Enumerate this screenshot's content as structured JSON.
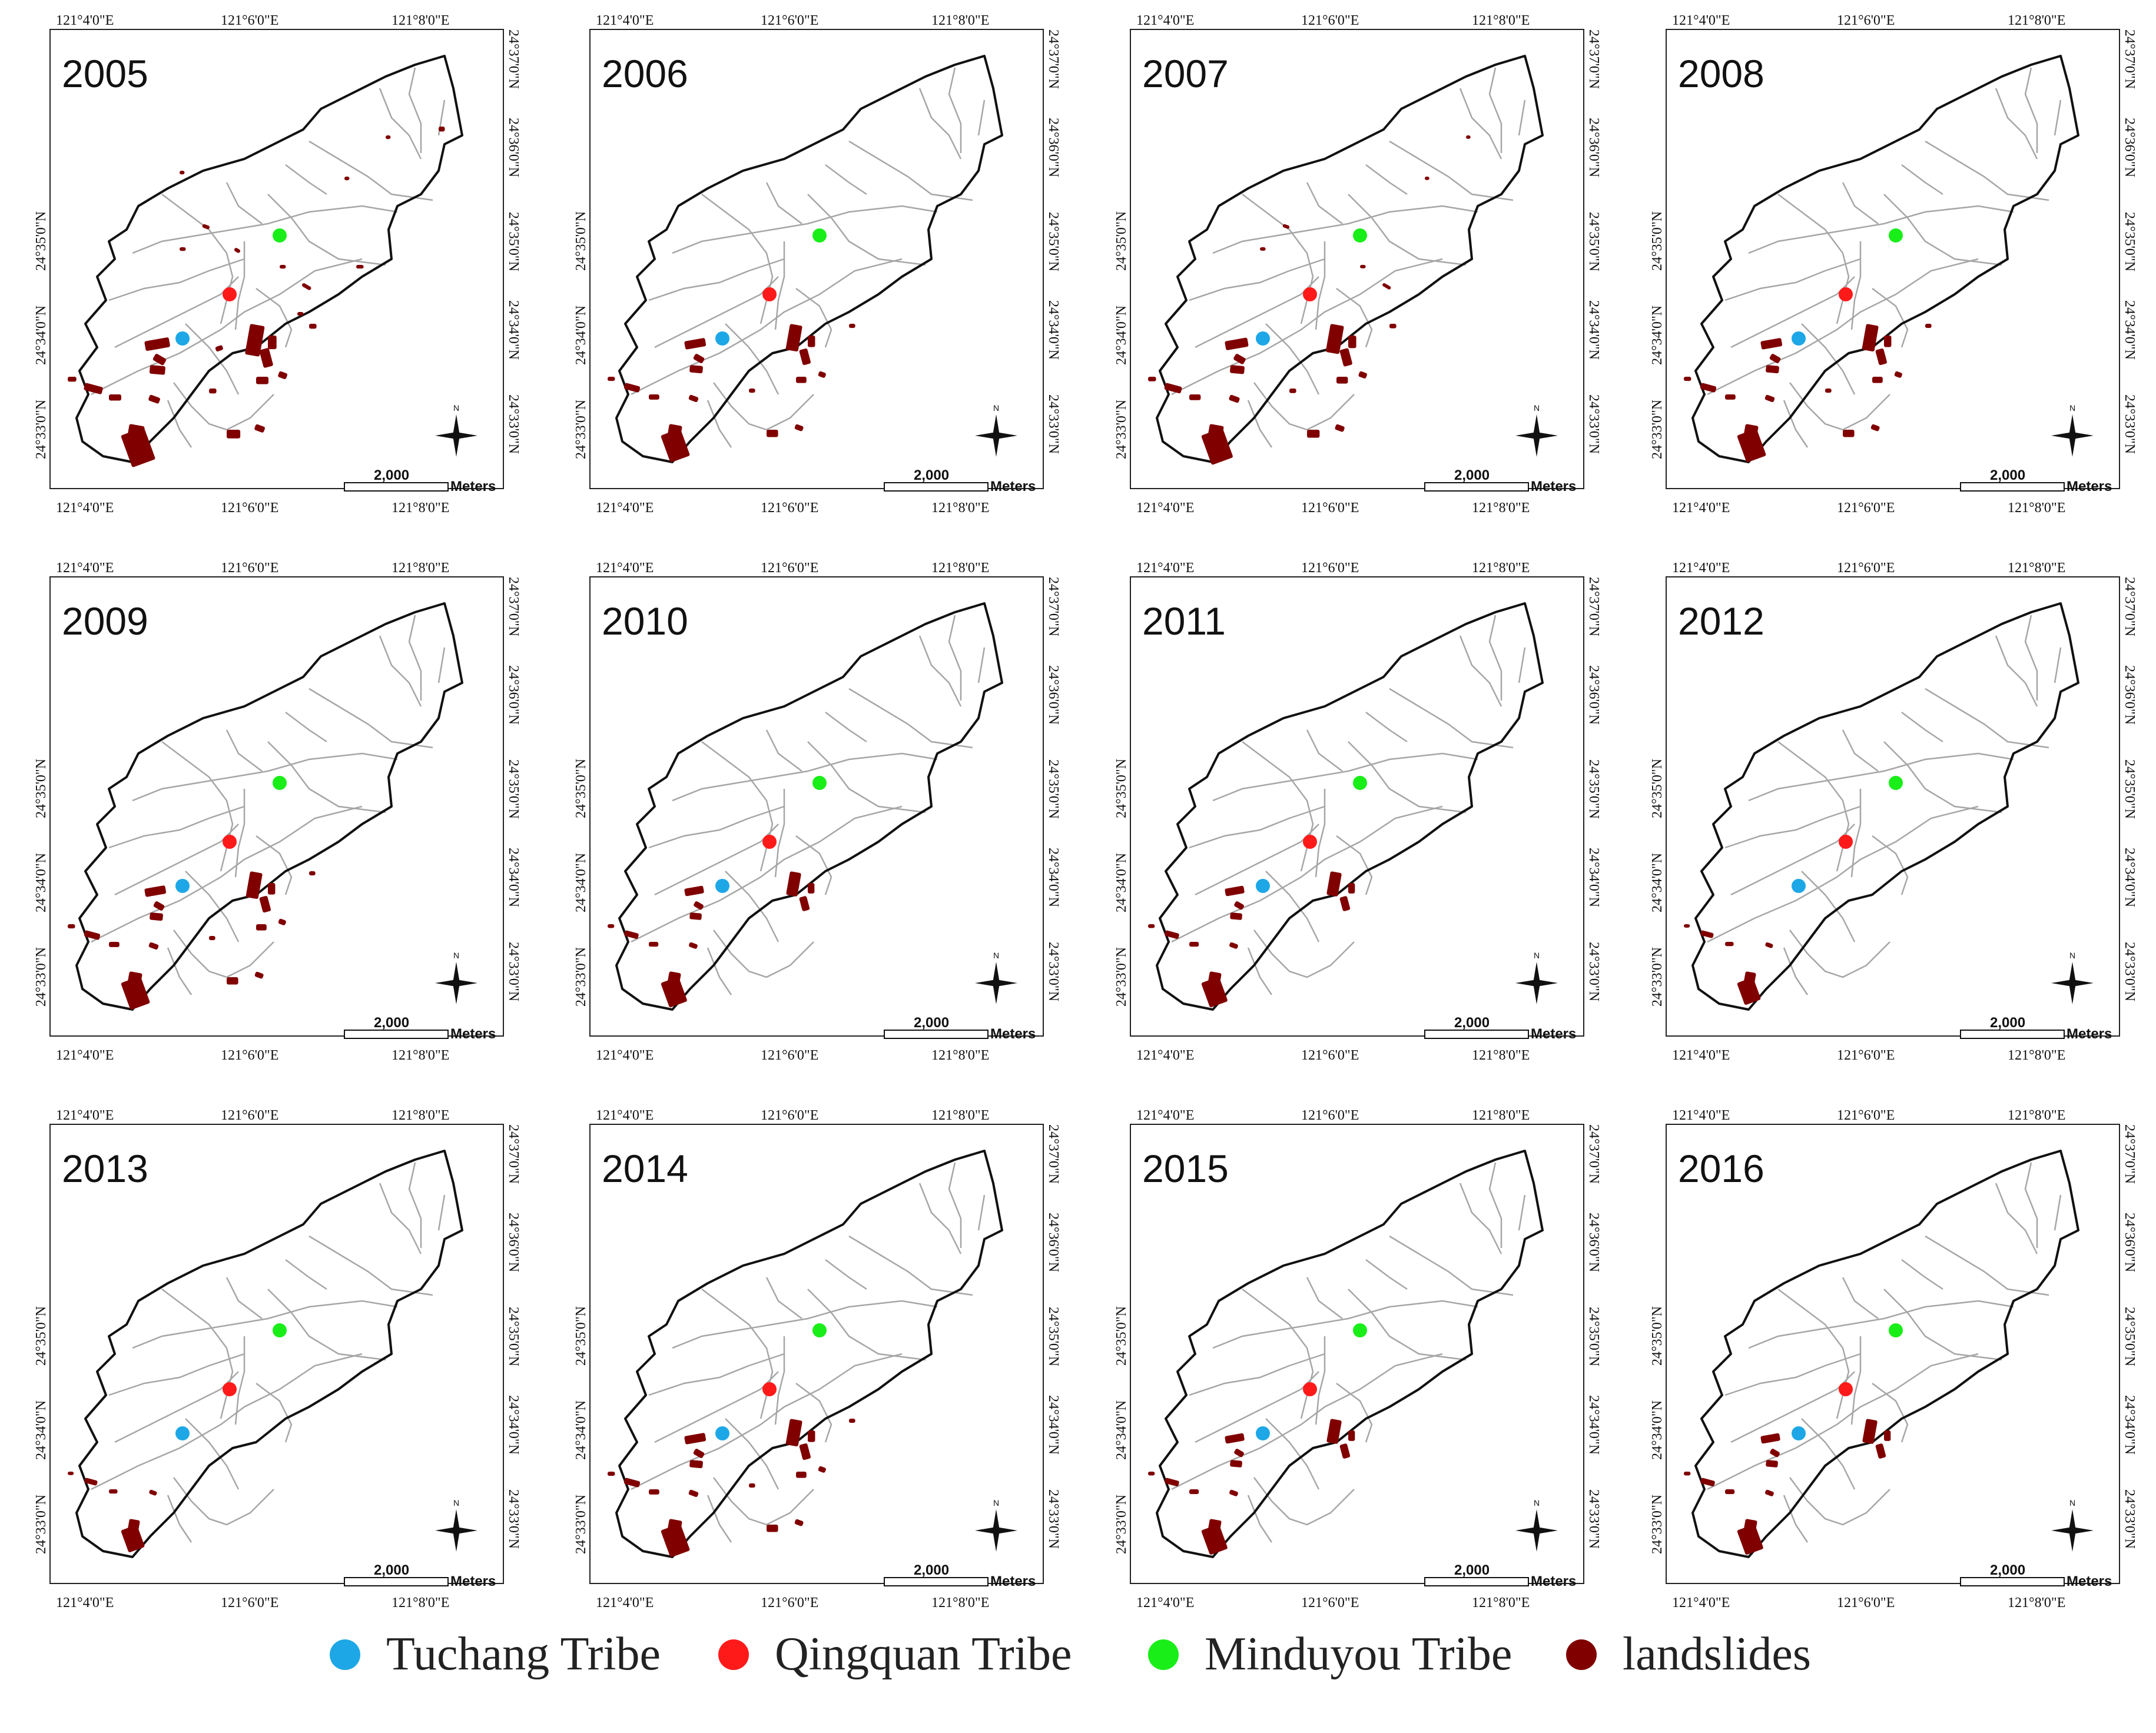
{
  "colors": {
    "tuchang": "#1ea7e6",
    "qingquan": "#ff1a1a",
    "minduyou": "#19ee19",
    "landslides": "#800000",
    "boundary": "#111111",
    "streams": "#a6a6a6"
  },
  "coordinate_labels": {
    "top": [
      "121°4'0\"E",
      "121°6'0\"E",
      "121°8'0\"E"
    ],
    "bottom": [
      "121°4'0\"E",
      "121°6'0\"E",
      "121°8'0\"E"
    ],
    "left": [
      "24°35'0\"N",
      "24°34'0\"N",
      "24°33'0\"N"
    ],
    "right": [
      "24°37'0\"N",
      "24°36'0\"N",
      "24°35'0\"N",
      "24°34'0\"N",
      "24°33'0\"N"
    ]
  },
  "scale_bar": {
    "value": "2,000",
    "unit": "Meters"
  },
  "north_label": "N",
  "panels": [
    {
      "year": "2005",
      "landslide_level": 5
    },
    {
      "year": "2006",
      "landslide_level": 3
    },
    {
      "year": "2007",
      "landslide_level": 4
    },
    {
      "year": "2008",
      "landslide_level": 3
    },
    {
      "year": "2009",
      "landslide_level": 3
    },
    {
      "year": "2010",
      "landslide_level": 2
    },
    {
      "year": "2011",
      "landslide_level": 2
    },
    {
      "year": "2012",
      "landslide_level": 1
    },
    {
      "year": "2013",
      "landslide_level": 1
    },
    {
      "year": "2014",
      "landslide_level": 3
    },
    {
      "year": "2015",
      "landslide_level": 2
    },
    {
      "year": "2016",
      "landslide_level": 2
    }
  ],
  "legend": [
    {
      "label": "Tuchang Tribe",
      "color_key": "tuchang"
    },
    {
      "label": "Qingquan Tribe",
      "color_key": "qingquan"
    },
    {
      "label": "Minduyou Tribe",
      "color_key": "minduyou"
    },
    {
      "label": "landslides",
      "color_key": "landslides"
    }
  ]
}
